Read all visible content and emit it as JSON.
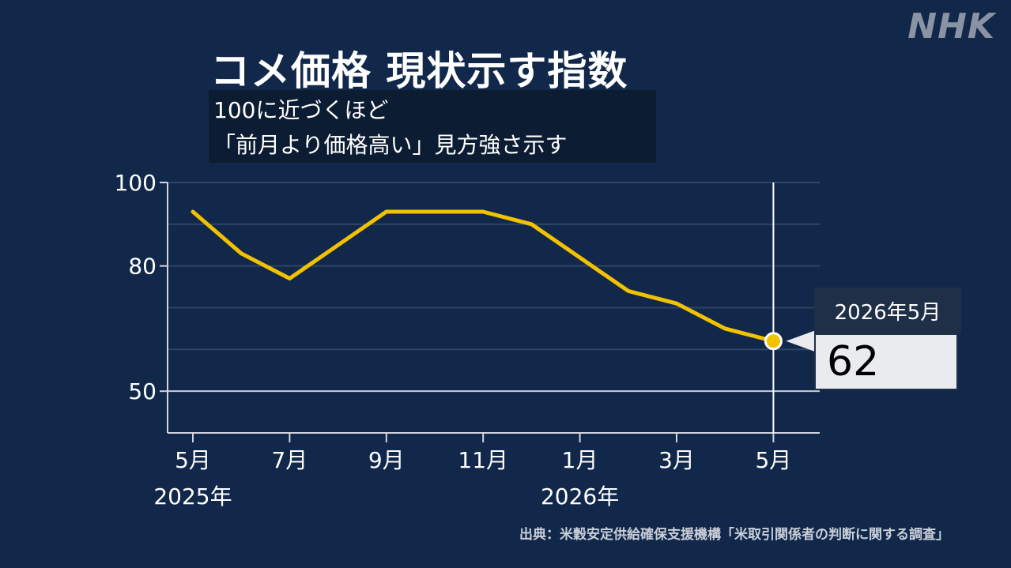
{
  "logo": "NHK",
  "title": "コメ価格 現状示す指数",
  "subtitle": [
    "100に近づくほど",
    "「前月より価格高い」見方強さ示す"
  ],
  "source": "出典：米穀安定供給確保支援機構「米取引関係者の判断に関する調査」",
  "callout": {
    "label": "2026年5月",
    "value": "62"
  },
  "colors": {
    "background": "#12284a",
    "line": "#f2c200",
    "grid": "#2e4566",
    "baseline": "#c7ccd6"
  },
  "chart_data": {
    "type": "line",
    "title": "コメ価格 現状示す指数",
    "subtitle": "100に近づくほど 「前月より価格高い」見方強さ示す",
    "x": [
      "2025-05",
      "2025-06",
      "2025-07",
      "2025-08",
      "2025-09",
      "2025-10",
      "2025-11",
      "2025-12",
      "2026-01",
      "2026-02",
      "2026-03",
      "2026-04",
      "2026-05"
    ],
    "values": [
      93,
      83,
      77,
      85,
      93,
      93,
      93,
      90,
      82,
      74,
      71,
      65,
      62
    ],
    "ylim": [
      40,
      100
    ],
    "yticks": [
      "100",
      "80",
      "50"
    ],
    "ytick_values": [
      100,
      80,
      50
    ],
    "xticks": [
      "5月",
      "7月",
      "9月",
      "11月",
      "1月",
      "3月",
      "5月"
    ],
    "xtick_values": [
      "2025-05",
      "2025-07",
      "2025-09",
      "2025-11",
      "2026-01",
      "2026-03",
      "2026-05"
    ],
    "year_labels": [
      {
        "label": "2025年",
        "at": "2025-05"
      },
      {
        "label": "2026年",
        "at": "2026-01"
      }
    ],
    "grid": true,
    "highlight": {
      "x": "2026-05",
      "value": 62
    }
  }
}
